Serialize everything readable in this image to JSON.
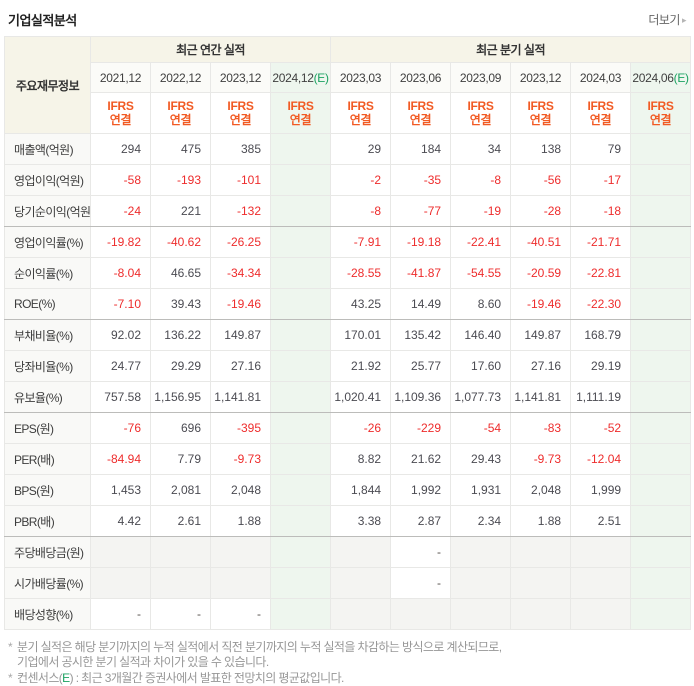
{
  "header": {
    "title": "기업실적분석",
    "more_label": "더보기",
    "more_arrow": "▸"
  },
  "table": {
    "corner_header": "주요재무정보",
    "group_annual": "최근 연간 실적",
    "group_quarterly": "최근 분기 실적",
    "ifrs_line1": "IFRS",
    "ifrs_line2": "연결",
    "e_suffix": "(E)",
    "periods": [
      {
        "label": "2021,12",
        "e": false
      },
      {
        "label": "2022,12",
        "e": false
      },
      {
        "label": "2023,12",
        "e": false
      },
      {
        "label": "2024,12",
        "e": true
      },
      {
        "label": "2023,03",
        "e": false
      },
      {
        "label": "2023,06",
        "e": false
      },
      {
        "label": "2023,09",
        "e": false
      },
      {
        "label": "2023,12",
        "e": false
      },
      {
        "label": "2024,03",
        "e": false
      },
      {
        "label": "2024,06",
        "e": true
      }
    ],
    "rows": [
      {
        "label": "매출액(억원)",
        "cells": [
          {
            "v": "294"
          },
          {
            "v": "475"
          },
          {
            "v": "385"
          },
          {
            "v": ""
          },
          {
            "v": "29"
          },
          {
            "v": "184"
          },
          {
            "v": "34"
          },
          {
            "v": "138"
          },
          {
            "v": "79"
          },
          {
            "v": ""
          }
        ]
      },
      {
        "label": "영업이익(억원)",
        "cells": [
          {
            "v": "-58"
          },
          {
            "v": "-193"
          },
          {
            "v": "-101"
          },
          {
            "v": ""
          },
          {
            "v": "-2"
          },
          {
            "v": "-35"
          },
          {
            "v": "-8"
          },
          {
            "v": "-56"
          },
          {
            "v": "-17"
          },
          {
            "v": ""
          }
        ]
      },
      {
        "label": "당기순이익(억원)",
        "group_end": true,
        "cells": [
          {
            "v": "-24"
          },
          {
            "v": "221"
          },
          {
            "v": "-132"
          },
          {
            "v": ""
          },
          {
            "v": "-8"
          },
          {
            "v": "-77"
          },
          {
            "v": "-19"
          },
          {
            "v": "-28"
          },
          {
            "v": "-18"
          },
          {
            "v": ""
          }
        ]
      },
      {
        "label": "영업이익률(%)",
        "cells": [
          {
            "v": "-19.82"
          },
          {
            "v": "-40.62"
          },
          {
            "v": "-26.25"
          },
          {
            "v": ""
          },
          {
            "v": "-7.91"
          },
          {
            "v": "-19.18"
          },
          {
            "v": "-22.41"
          },
          {
            "v": "-40.51"
          },
          {
            "v": "-21.71"
          },
          {
            "v": ""
          }
        ]
      },
      {
        "label": "순이익률(%)",
        "cells": [
          {
            "v": "-8.04"
          },
          {
            "v": "46.65"
          },
          {
            "v": "-34.34"
          },
          {
            "v": ""
          },
          {
            "v": "-28.55"
          },
          {
            "v": "-41.87"
          },
          {
            "v": "-54.55"
          },
          {
            "v": "-20.59"
          },
          {
            "v": "-22.81"
          },
          {
            "v": ""
          }
        ]
      },
      {
        "label": "ROE(%)",
        "group_end": true,
        "cells": [
          {
            "v": "-7.10"
          },
          {
            "v": "39.43"
          },
          {
            "v": "-19.46"
          },
          {
            "v": ""
          },
          {
            "v": "43.25"
          },
          {
            "v": "14.49"
          },
          {
            "v": "8.60"
          },
          {
            "v": "-19.46"
          },
          {
            "v": "-22.30"
          },
          {
            "v": ""
          }
        ]
      },
      {
        "label": "부채비율(%)",
        "cells": [
          {
            "v": "92.02"
          },
          {
            "v": "136.22"
          },
          {
            "v": "149.87"
          },
          {
            "v": ""
          },
          {
            "v": "170.01"
          },
          {
            "v": "135.42"
          },
          {
            "v": "146.40"
          },
          {
            "v": "149.87"
          },
          {
            "v": "168.79"
          },
          {
            "v": ""
          }
        ]
      },
      {
        "label": "당좌비율(%)",
        "cells": [
          {
            "v": "24.77"
          },
          {
            "v": "29.29"
          },
          {
            "v": "27.16"
          },
          {
            "v": ""
          },
          {
            "v": "21.92"
          },
          {
            "v": "25.77"
          },
          {
            "v": "17.60"
          },
          {
            "v": "27.16"
          },
          {
            "v": "29.19"
          },
          {
            "v": ""
          }
        ]
      },
      {
        "label": "유보율(%)",
        "group_end": true,
        "cells": [
          {
            "v": "757.58"
          },
          {
            "v": "1,156.95"
          },
          {
            "v": "1,141.81"
          },
          {
            "v": ""
          },
          {
            "v": "1,020.41"
          },
          {
            "v": "1,109.36"
          },
          {
            "v": "1,077.73"
          },
          {
            "v": "1,141.81"
          },
          {
            "v": "1,111.19"
          },
          {
            "v": ""
          }
        ]
      },
      {
        "label": "EPS(원)",
        "cells": [
          {
            "v": "-76"
          },
          {
            "v": "696"
          },
          {
            "v": "-395"
          },
          {
            "v": ""
          },
          {
            "v": "-26"
          },
          {
            "v": "-229"
          },
          {
            "v": "-54"
          },
          {
            "v": "-83"
          },
          {
            "v": "-52"
          },
          {
            "v": ""
          }
        ]
      },
      {
        "label": "PER(배)",
        "cells": [
          {
            "v": "-84.94"
          },
          {
            "v": "7.79"
          },
          {
            "v": "-9.73"
          },
          {
            "v": ""
          },
          {
            "v": "8.82"
          },
          {
            "v": "21.62"
          },
          {
            "v": "29.43"
          },
          {
            "v": "-9.73"
          },
          {
            "v": "-12.04"
          },
          {
            "v": ""
          }
        ]
      },
      {
        "label": "BPS(원)",
        "cells": [
          {
            "v": "1,453"
          },
          {
            "v": "2,081"
          },
          {
            "v": "2,048"
          },
          {
            "v": ""
          },
          {
            "v": "1,844"
          },
          {
            "v": "1,992"
          },
          {
            "v": "1,931"
          },
          {
            "v": "2,048"
          },
          {
            "v": "1,999"
          },
          {
            "v": ""
          }
        ]
      },
      {
        "label": "PBR(배)",
        "group_end": true,
        "cells": [
          {
            "v": "4.42"
          },
          {
            "v": "2.61"
          },
          {
            "v": "1.88"
          },
          {
            "v": ""
          },
          {
            "v": "3.38"
          },
          {
            "v": "2.87"
          },
          {
            "v": "2.34"
          },
          {
            "v": "1.88"
          },
          {
            "v": "2.51"
          },
          {
            "v": ""
          }
        ]
      },
      {
        "label": "주당배당금(원)",
        "cells": [
          {
            "v": "",
            "bg": "gray"
          },
          {
            "v": "",
            "bg": "gray"
          },
          {
            "v": "",
            "bg": "gray"
          },
          {
            "v": "",
            "bg": "green"
          },
          {
            "v": "",
            "bg": "gray"
          },
          {
            "v": "-",
            "bg": "white"
          },
          {
            "v": "",
            "bg": "gray"
          },
          {
            "v": "",
            "bg": "gray"
          },
          {
            "v": "",
            "bg": "gray"
          },
          {
            "v": "",
            "bg": "green"
          }
        ]
      },
      {
        "label": "시가배당률(%)",
        "cells": [
          {
            "v": "",
            "bg": "gray"
          },
          {
            "v": "",
            "bg": "gray"
          },
          {
            "v": "",
            "bg": "gray"
          },
          {
            "v": "",
            "bg": "green"
          },
          {
            "v": "",
            "bg": "gray"
          },
          {
            "v": "-",
            "bg": "white"
          },
          {
            "v": "",
            "bg": "gray"
          },
          {
            "v": "",
            "bg": "gray"
          },
          {
            "v": "",
            "bg": "gray"
          },
          {
            "v": "",
            "bg": "green"
          }
        ]
      },
      {
        "label": "배당성향(%)",
        "cells": [
          {
            "v": "-"
          },
          {
            "v": "-"
          },
          {
            "v": "-"
          },
          {
            "v": "",
            "bg": "green"
          },
          {
            "v": "",
            "bg": "gray"
          },
          {
            "v": "",
            "bg": "gray"
          },
          {
            "v": "",
            "bg": "gray"
          },
          {
            "v": "",
            "bg": "gray"
          },
          {
            "v": "",
            "bg": "gray"
          },
          {
            "v": "",
            "bg": "green"
          }
        ]
      }
    ]
  },
  "footnotes": {
    "note1_line1": "분기 실적은 해당 분기까지의 누적 실적에서 직전 분기까지의 누적 실적을 차감하는 방식으로 계산되므로,",
    "note1_line2": "기업에서 공시한 분기 실적과 차이가 있을 수 있습니다.",
    "note2_pre": "컨센서스(",
    "note2_e": "E",
    "note2_post": ") : 최근 3개월간 증권사에서 발표한 전망치의 평균값입니다.",
    "bullet": "*"
  },
  "colors": {
    "accent_orange": "#f15a23",
    "accent_green": "#1ba261",
    "negative_red": "#ee2c2c",
    "header_beige": "#f6f4e8",
    "estimate_col_bg": "#eef6ee",
    "empty_cell_gray": "#f4f4f2"
  }
}
